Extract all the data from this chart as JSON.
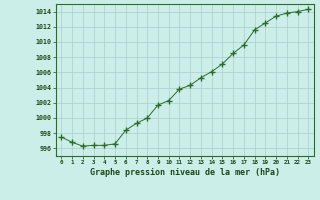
{
  "hours": [
    0,
    1,
    2,
    3,
    4,
    5,
    6,
    7,
    8,
    9,
    10,
    11,
    12,
    13,
    14,
    15,
    16,
    17,
    18,
    19,
    20,
    21,
    22,
    23
  ],
  "pressure": [
    997.5,
    996.8,
    996.3,
    996.4,
    996.4,
    996.6,
    998.4,
    999.3,
    1000.0,
    1001.7,
    1002.3,
    1003.8,
    1004.3,
    1005.3,
    1006.1,
    1007.1,
    1008.5,
    1009.6,
    1011.6,
    1012.5,
    1013.4,
    1013.8,
    1014.0,
    1014.3
  ],
  "ylim": [
    995.0,
    1015.0
  ],
  "yticks": [
    996,
    998,
    1000,
    1002,
    1004,
    1006,
    1008,
    1010,
    1012,
    1014
  ],
  "line_color": "#2d6a2d",
  "marker": "+",
  "bg_color": "#cceee8",
  "grid_color": "#aacccc",
  "xlabel": "Graphe pression niveau de la mer (hPa)",
  "xlabel_color": "#1a4a1a",
  "tick_color": "#1a4a1a",
  "spine_color": "#2d6a2d"
}
